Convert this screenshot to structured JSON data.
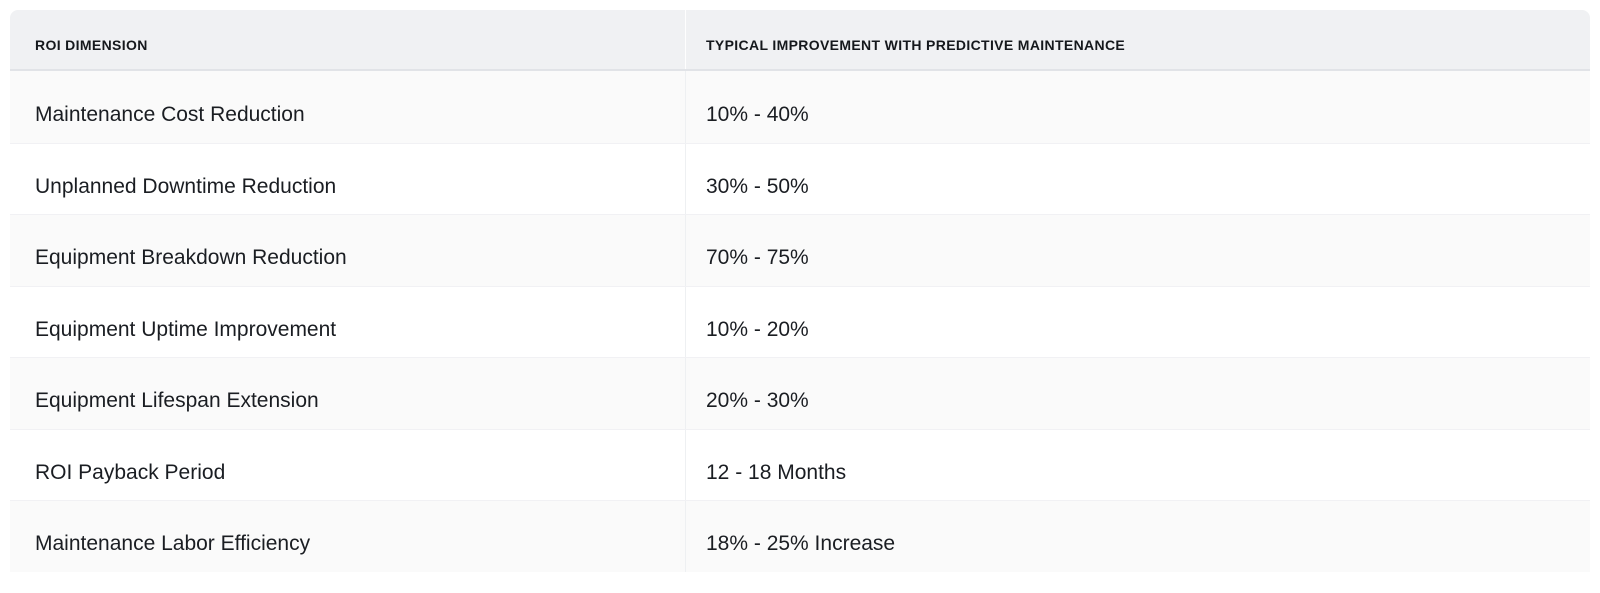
{
  "chart_data": {
    "type": "table",
    "columns": [
      "ROI DIMENSION",
      "TYPICAL IMPROVEMENT WITH PREDICTIVE MAINTENANCE"
    ],
    "rows": [
      [
        "Maintenance Cost Reduction",
        "10% - 40%"
      ],
      [
        "Unplanned Downtime Reduction",
        "30% - 50%"
      ],
      [
        "Equipment Breakdown Reduction",
        "70% - 75%"
      ],
      [
        "Equipment Uptime Improvement",
        "10% - 20%"
      ],
      [
        "Equipment Lifespan Extension",
        "20% - 30%"
      ],
      [
        "ROI Payback Period",
        "12 - 18 Months"
      ],
      [
        "Maintenance Labor Efficiency",
        "18% - 25% Increase"
      ]
    ],
    "layout": {
      "striped": true,
      "stripe_rows": "odd",
      "header_position": "top"
    }
  },
  "colors": {
    "header_bg": "#f0f1f3",
    "stripe_bg": "#fafafa",
    "row_bg": "#ffffff",
    "header_text": "#15181c",
    "body_text": "#1a1d22",
    "header_rule": "#e1e3e7",
    "divider": "#eef0f2"
  }
}
